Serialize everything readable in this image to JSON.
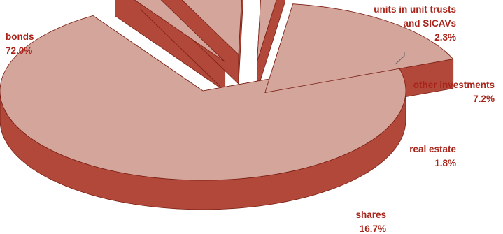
{
  "chart_data": {
    "type": "pie",
    "title": "",
    "three_d": true,
    "exploded": true,
    "slices": [
      {
        "label": "bonds",
        "value": 72.0,
        "value_label": "72.0%"
      },
      {
        "label": "units in unit trusts and SICAVs",
        "label_lines": [
          "units in unit trusts",
          "and SICAVs"
        ],
        "value": 2.3,
        "value_label": "2.3%"
      },
      {
        "label": "other investments",
        "value": 7.2,
        "value_label": "7.2%"
      },
      {
        "label": "real estate",
        "value": 1.8,
        "value_label": "1.8%"
      },
      {
        "label": "shares",
        "value": 16.7,
        "value_label": "16.7%"
      }
    ],
    "colors": {
      "top": "#d4a59b",
      "side": "#b1483a",
      "edge": "#7a1f14",
      "label": "#a8241a",
      "leader": "#666666"
    }
  }
}
